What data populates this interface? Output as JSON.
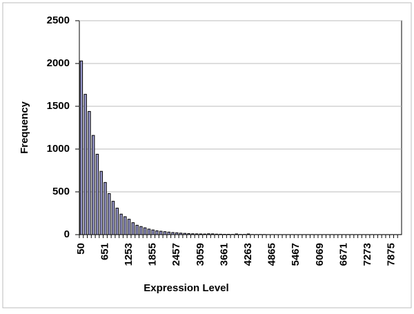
{
  "chart_data": {
    "type": "bar",
    "xlabel": "Expression Level",
    "ylabel": "Frequency",
    "categories": [
      "50",
      null,
      null,
      null,
      null,
      null,
      "651",
      null,
      null,
      null,
      null,
      null,
      "1253",
      null,
      null,
      null,
      null,
      null,
      "1855",
      null,
      null,
      null,
      null,
      null,
      "2457",
      null,
      null,
      null,
      null,
      null,
      "3059",
      null,
      null,
      null,
      null,
      null,
      "3661",
      null,
      null,
      null,
      null,
      null,
      "4263",
      null,
      null,
      null,
      null,
      null,
      "4865",
      null,
      null,
      null,
      null,
      null,
      "5467",
      null,
      null,
      null,
      null,
      null,
      "6069",
      null,
      null,
      null,
      null,
      null,
      "6671",
      null,
      null,
      null,
      null,
      null,
      "7273",
      null,
      null,
      null,
      null,
      null,
      "7875",
      null,
      null
    ],
    "values": [
      2030,
      1640,
      1440,
      1160,
      940,
      740,
      610,
      480,
      390,
      310,
      240,
      210,
      180,
      140,
      110,
      95,
      80,
      65,
      55,
      45,
      40,
      35,
      30,
      25,
      22,
      18,
      15,
      12,
      10,
      9,
      8,
      7,
      10,
      9,
      6,
      5,
      4,
      4,
      3,
      8,
      3,
      3,
      8,
      2,
      2,
      2,
      2,
      1,
      1,
      1,
      1,
      1,
      1,
      1,
      1,
      1,
      1,
      1,
      1,
      1,
      1,
      1,
      1,
      1,
      1,
      1,
      1,
      1,
      1,
      1,
      1,
      1,
      1,
      1,
      1,
      1,
      1,
      1,
      1,
      1,
      1
    ],
    "color": "#9999cc",
    "ylim": [
      0,
      2500
    ],
    "yticks": [
      0,
      500,
      1000,
      1500,
      2000,
      2500
    ],
    "grid": true
  }
}
